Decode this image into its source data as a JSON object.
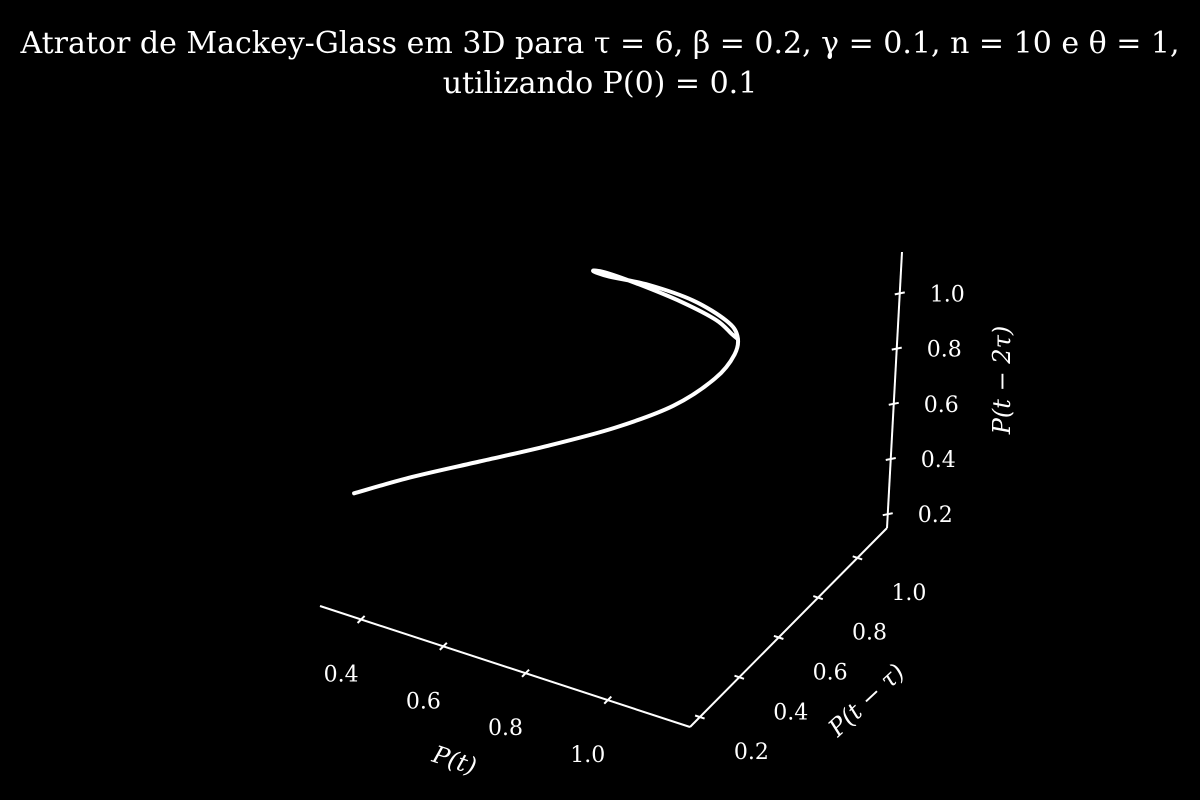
{
  "chart_data": {
    "type": "line",
    "projection": "3d",
    "title_line1": "Atrator de Mackey-Glass em 3D para τ = 6, β = 0.2, γ = 0.1, n = 10 e θ = 1,",
    "title_line2": "utilizando P(0) = 0.1",
    "xlabel": "P(t)",
    "ylabel": "P(t − τ)",
    "zlabel": "P(t − 2τ)",
    "x_ticks": [
      "0.4",
      "0.6",
      "0.8",
      "1.0"
    ],
    "y_ticks": [
      "0.2",
      "0.4",
      "0.6",
      "0.8",
      "1.0"
    ],
    "z_ticks": [
      "0.2",
      "0.4",
      "0.6",
      "0.8",
      "1.0"
    ],
    "x_tick_values": [
      0.4,
      0.6,
      0.8,
      1.0
    ],
    "y_tick_values": [
      0.2,
      0.4,
      0.6,
      0.8,
      1.0
    ],
    "z_tick_values": [
      0.2,
      0.4,
      0.6,
      0.8,
      1.0
    ],
    "xlim": [
      0.3,
      1.2
    ],
    "ylim": [
      0.15,
      1.15
    ],
    "zlim": [
      0.15,
      1.15
    ],
    "grid": false,
    "background_color": "#000000",
    "line_color": "#ffffff",
    "series": [
      {
        "points": [
          [
            0.3,
            0.3,
            0.45
          ],
          [
            0.4,
            0.38,
            0.5
          ],
          [
            0.52,
            0.47,
            0.55
          ],
          [
            0.64,
            0.56,
            0.6
          ],
          [
            0.76,
            0.65,
            0.66
          ],
          [
            0.86,
            0.73,
            0.73
          ],
          [
            0.93,
            0.79,
            0.82
          ],
          [
            0.96,
            0.82,
            0.9
          ],
          [
            0.96,
            0.83,
            0.96
          ],
          [
            0.94,
            0.81,
            1.02
          ],
          [
            0.88,
            0.76,
            1.1
          ],
          [
            0.8,
            0.7,
            1.16
          ],
          [
            0.73,
            0.64,
            1.2
          ],
          [
            0.7,
            0.62,
            1.22
          ],
          [
            0.72,
            0.64,
            1.21
          ],
          [
            0.78,
            0.69,
            1.16
          ],
          [
            0.86,
            0.75,
            1.09
          ],
          [
            0.92,
            0.8,
            1.02
          ],
          [
            0.95,
            0.82,
            0.97
          ],
          [
            0.96,
            0.83,
            0.95
          ]
        ]
      }
    ]
  }
}
